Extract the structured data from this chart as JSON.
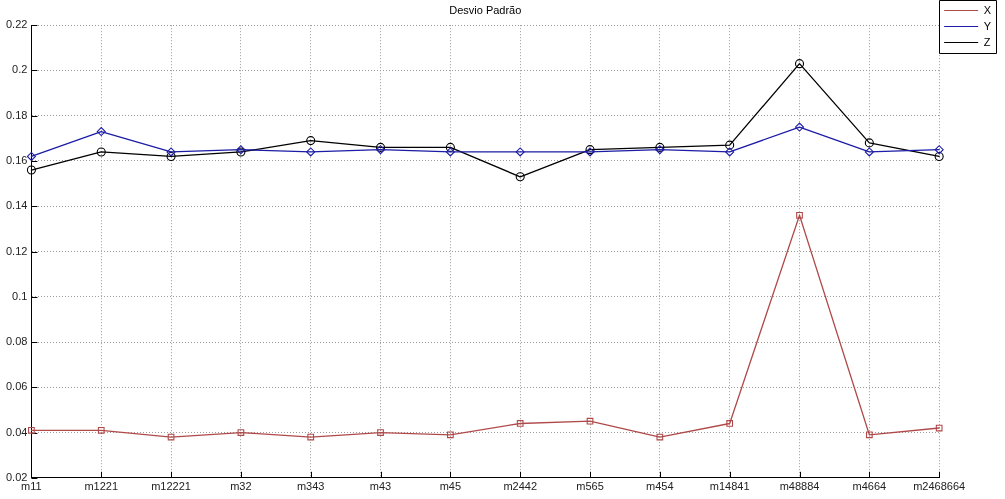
{
  "chart_data": {
    "type": "line",
    "title": "Desvio Padrão",
    "categories": [
      "m11",
      "m1221",
      "m12221",
      "m32",
      "m343",
      "m43",
      "m45",
      "m2442",
      "m565",
      "m454",
      "m14841",
      "m48884",
      "m4664",
      "m2468664"
    ],
    "series": [
      {
        "name": "X",
        "color": "#b04a4a",
        "marker": "square",
        "values": [
          0.041,
          0.041,
          0.038,
          0.04,
          0.038,
          0.04,
          0.039,
          0.044,
          0.045,
          0.038,
          0.044,
          0.136,
          0.039,
          0.042
        ]
      },
      {
        "name": "Y",
        "color": "#1c1ca6",
        "marker": "diamond",
        "values": [
          0.162,
          0.173,
          0.164,
          0.165,
          0.164,
          0.165,
          0.164,
          0.164,
          0.164,
          0.165,
          0.164,
          0.175,
          0.164,
          0.165
        ]
      },
      {
        "name": "Z",
        "color": "#000000",
        "marker": "circle",
        "values": [
          0.156,
          0.164,
          0.162,
          0.164,
          0.169,
          0.166,
          0.166,
          0.153,
          0.165,
          0.166,
          0.167,
          0.203,
          0.168,
          0.162
        ]
      }
    ],
    "ylim": [
      0.02,
      0.22
    ],
    "yticks": [
      0.02,
      0.04,
      0.06,
      0.08,
      0.1,
      0.12,
      0.14,
      0.16,
      0.18,
      0.2,
      0.22
    ],
    "grid": true,
    "legend": "top right",
    "line_style": "solid"
  }
}
